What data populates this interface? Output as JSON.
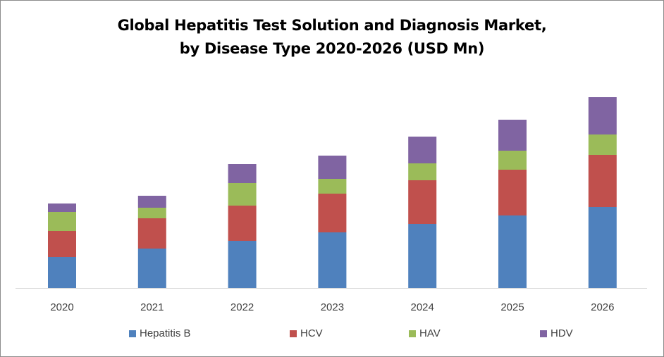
{
  "chart_data": {
    "type": "bar",
    "stacked": true,
    "title_line1": "Global Hepatitis Test Solution and Diagnosis Market,",
    "title_line2": "by Disease Type 2020-2026 (USD Mn)",
    "xlabel": "",
    "ylabel": "",
    "categories": [
      "2020",
      "2021",
      "2022",
      "2023",
      "2024",
      "2025",
      "2026"
    ],
    "series": [
      {
        "name": "Hepatitis B",
        "color": "#4f81bd",
        "values": [
          44,
          56,
          67,
          79,
          91,
          103,
          115
        ]
      },
      {
        "name": "HCV",
        "color": "#c0504d",
        "values": [
          37,
          43,
          50,
          55,
          62,
          65,
          74
        ]
      },
      {
        "name": "HAV",
        "color": "#9bbb59",
        "values": [
          27,
          15,
          32,
          21,
          24,
          27,
          29
        ]
      },
      {
        "name": "HDV",
        "color": "#8064a2",
        "values": [
          12,
          17,
          27,
          33,
          38,
          44,
          53
        ]
      }
    ],
    "ylim": [
      0,
      300
    ],
    "y_axis_visible": false,
    "grid": false,
    "legend_position": "bottom"
  }
}
